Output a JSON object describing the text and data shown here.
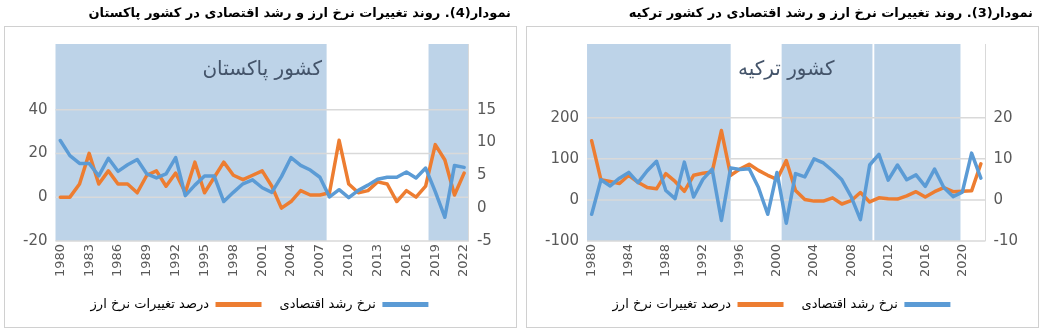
{
  "chart_data": [
    {
      "type": "line",
      "title": "نمودار(3). روند تغییرات نرخ ارز و رشد اقتصادی در کشور ترکیه",
      "annotations": [
        "کشور ترکیه"
      ],
      "x": [
        1980,
        1981,
        1982,
        1983,
        1984,
        1985,
        1986,
        1987,
        1988,
        1989,
        1990,
        1991,
        1992,
        1993,
        1994,
        1995,
        1996,
        1997,
        1998,
        1999,
        2000,
        2001,
        2002,
        2003,
        2004,
        2005,
        2006,
        2007,
        2008,
        2009,
        2010,
        2011,
        2012,
        2013,
        2014,
        2015,
        2016,
        2017,
        2018,
        2019,
        2020,
        2021,
        2022
      ],
      "xlim": [
        1979.5,
        2022.5
      ],
      "xticks": [
        1980,
        1984,
        1988,
        1992,
        1996,
        2000,
        2004,
        2008,
        2012,
        2016,
        2020
      ],
      "ylim": [
        -100,
        380
      ],
      "yticks": [
        -100,
        0,
        100,
        200
      ],
      "y2lim": [
        -10,
        38
      ],
      "y2ticks": [
        -10,
        0,
        10,
        20
      ],
      "grid": "y",
      "legend": "bottom",
      "bands": [
        {
          "axis": "x",
          "from": 1979.5,
          "to": 1995,
          "color": "#bdd3e8"
        },
        {
          "axis": "x",
          "from": 2000.5,
          "to": 2010.3,
          "color": "#bdd3e8"
        },
        {
          "axis": "x",
          "from": 2010.5,
          "to": 2019.8,
          "color": "#bdd3e8"
        }
      ],
      "series": [
        {
          "name": "نرخ رشد اقتصادی",
          "color": "#5b9bd5",
          "axis": "y2",
          "values": [
            -3.5,
            4.9,
            3.4,
            5.3,
            6.7,
            4.2,
            7.1,
            9.4,
            2.3,
            0.3,
            9.2,
            0.7,
            5,
            7.5,
            -5,
            7.8,
            7.4,
            7.6,
            3,
            -3.5,
            6.7,
            -5.7,
            6.4,
            5.6,
            10,
            9,
            7.1,
            4.9,
            0.8,
            -4.8,
            8.5,
            11.1,
            4.8,
            8.5,
            4.9,
            6.1,
            3.3,
            7.5,
            3,
            0.8,
            1.9,
            11.4,
            5.3
          ]
        },
        {
          "name": "درصد تغییرات نرخ ارز",
          "color": "#ed7d31",
          "values": [
            144,
            49,
            45,
            40,
            60,
            43,
            30,
            27,
            64,
            45,
            21,
            60,
            65,
            68,
            169,
            60,
            75,
            87,
            72,
            60,
            50,
            96,
            23,
            1,
            -3,
            -3,
            5,
            -10,
            -2,
            18,
            -5,
            5,
            3,
            2,
            10,
            20,
            7,
            20,
            30,
            20,
            21,
            22,
            88
          ]
        }
      ]
    },
    {
      "type": "line",
      "title": "نمودار(4). روند تغییرات نرخ ارز و رشد اقتصادی در کشور پاکستان",
      "annotations": [
        "کشور پاکستان"
      ],
      "x": [
        1980,
        1981,
        1982,
        1983,
        1984,
        1985,
        1986,
        1987,
        1988,
        1989,
        1990,
        1991,
        1992,
        1993,
        1994,
        1995,
        1996,
        1997,
        1998,
        1999,
        2000,
        2001,
        2002,
        2003,
        2004,
        2005,
        2006,
        2007,
        2008,
        2009,
        2010,
        2011,
        2012,
        2013,
        2014,
        2015,
        2016,
        2017,
        2018,
        2019,
        2020,
        2021,
        2022
      ],
      "xlim": [
        1979.5,
        2022.5
      ],
      "xticks": [
        1980,
        1983,
        1986,
        1989,
        1992,
        1995,
        1998,
        2001,
        2004,
        2007,
        2010,
        2013,
        2016,
        2019,
        2022
      ],
      "ylim": [
        -20,
        70
      ],
      "yticks": [
        -20,
        0,
        20,
        40
      ],
      "y2lim": [
        -5,
        25
      ],
      "y2ticks": [
        -5,
        0,
        5,
        10,
        15
      ],
      "grid": "y",
      "legend": "bottom",
      "bands": [
        {
          "axis": "x",
          "from": 1979.5,
          "to": 2007.7,
          "color": "#bdd3e8"
        },
        {
          "axis": "x",
          "from": 2018.3,
          "to": 2022.5,
          "color": "#bdd3e8"
        }
      ],
      "series": [
        {
          "name": "نرخ رشد اقتصادی",
          "color": "#5b9bd5",
          "axis": "y2",
          "values": [
            10.3,
            8,
            6.8,
            6.8,
            4.9,
            7.6,
            5.6,
            6.6,
            7.4,
            5.2,
            4.6,
            5.2,
            7.7,
            1.9,
            3.5,
            4.9,
            4.9,
            1,
            2.4,
            3.7,
            4.3,
            3.1,
            2.4,
            4.8,
            7.7,
            6.5,
            5.8,
            4.7,
            1.7,
            2.8,
            1.6,
            2.7,
            3.5,
            4.4,
            4.7,
            4.7,
            5.5,
            4.6,
            6.1,
            2.5,
            -1.4,
            6.5,
            6.2
          ]
        },
        {
          "name": "درصد تغییرات نرخ ارز",
          "color": "#ed7d31",
          "values": [
            0,
            0,
            6,
            20,
            6,
            12,
            6,
            6,
            2,
            10,
            12,
            5,
            11,
            2,
            16,
            2,
            9,
            16,
            10,
            8,
            10,
            12,
            5,
            -5,
            -2,
            3,
            1,
            1,
            2,
            26,
            6,
            2,
            3,
            7,
            6,
            -2,
            3,
            0,
            5,
            24,
            17,
            1,
            11
          ]
        }
      ]
    }
  ]
}
